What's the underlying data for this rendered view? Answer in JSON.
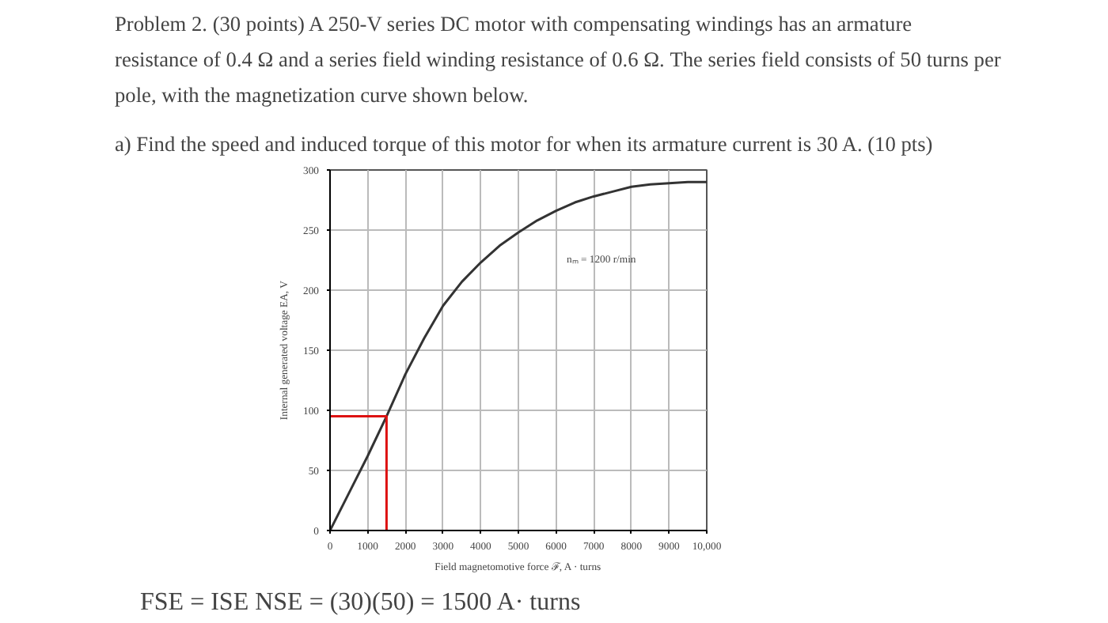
{
  "chart_data": {
    "type": "line",
    "title": "Problem 2. (30 points)  A 250-V series DC motor with compensating windings has an armature\nresistance of 0.4 Ω and a series field winding resistance of 0.6 Ω. The series field consists of 50 turns per\npole, with the magnetization curve shown below.",
    "subtitle": "a)   Find the speed and induced torque of this motor for when its armature current is 30 A. (10 pts)",
    "xlabel": "Field magnetomotive force ℱ, A · turns",
    "ylabel": "Internal generated voltage EA, V",
    "annotations": [
      "nₘ = 1200 r/min",
      "FSE = ISE NSE = (30)(50) = 1500 A· turns"
    ],
    "series": [
      {
        "color": "#333333",
        "x": [
          0,
          500,
          1000,
          1500,
          2000,
          2500,
          3000,
          3500,
          4000,
          4500,
          5000,
          5500,
          6000,
          6500,
          7000,
          7500,
          8000,
          8500,
          9000,
          9500,
          10000
        ],
        "values": [
          0,
          31,
          62,
          95,
          130,
          160,
          187,
          207,
          223,
          237,
          248,
          258,
          266,
          273,
          278,
          282,
          286,
          288,
          289,
          290,
          290
        ]
      },
      {
        "color": "#dd1111",
        "x": [
          0,
          1500,
          1500
        ],
        "values": [
          95,
          95,
          0
        ]
      }
    ],
    "xlim": [
      0,
      10000
    ],
    "xticks": [
      0,
      1000,
      2000,
      3000,
      4000,
      5000,
      6000,
      7000,
      8000,
      9000,
      {
        "value": 10000,
        "label": "10,000"
      }
    ],
    "ylim": [
      0,
      300
    ],
    "yticks": [
      0,
      50,
      100,
      150,
      200,
      250,
      300
    ],
    "grid": true,
    "marker": "none",
    "line_style": "solid"
  }
}
